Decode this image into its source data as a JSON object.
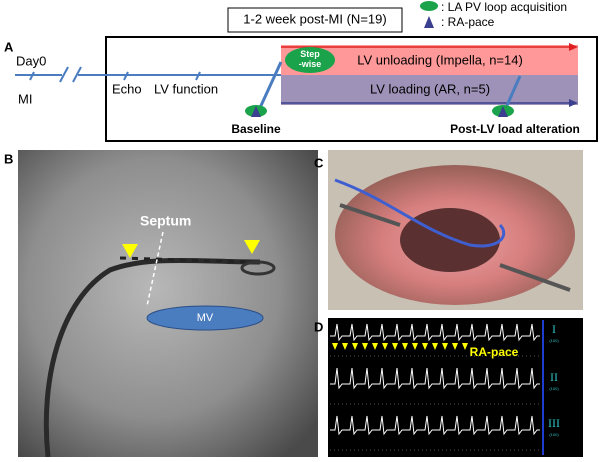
{
  "legend": [
    ": LA PV loop acquisition",
    ": RA-pace"
  ],
  "panel_a": {
    "label": "A",
    "period": "1-2 week post-MI (N=19)",
    "day0": "Day0",
    "mi": "MI",
    "echo": "Echo",
    "lv_function": "LV function",
    "step_wise": "Step\n-wise",
    "unloading": "LV unloading (Impella, n=14)",
    "loading": "LV loading (AR, n=5)",
    "baseline": "Baseline",
    "post": "Post-LV load alteration"
  },
  "panel_b": {
    "label": "B",
    "septum": "Septum",
    "mv": "MV"
  },
  "panel_c": {
    "label": "C"
  },
  "panel_d": {
    "label": "D",
    "ra_pace": "RA-pace",
    "leads": [
      {
        "name": "I",
        "scale": "(100)"
      },
      {
        "name": "II",
        "scale": "(100)"
      },
      {
        "name": "III",
        "scale": "(100)"
      }
    ]
  }
}
